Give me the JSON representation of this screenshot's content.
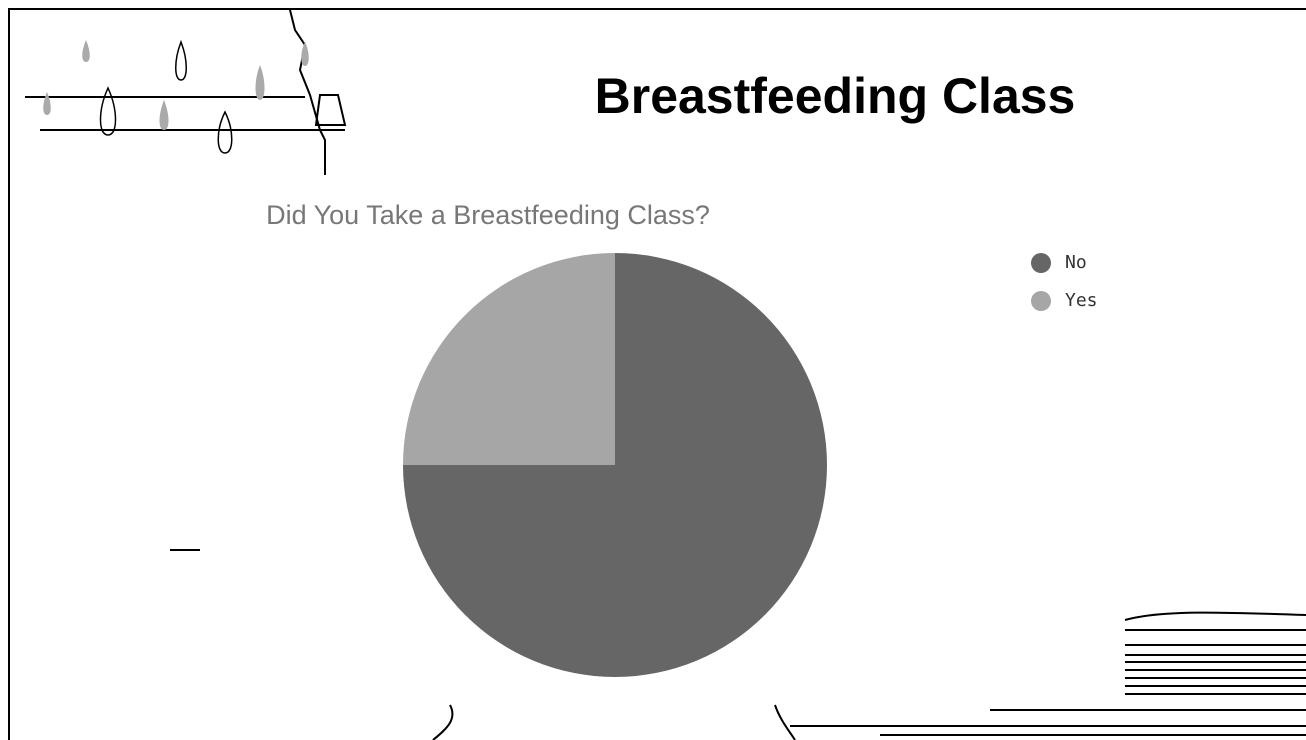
{
  "slide_title": "Breastfeeding Class",
  "chart_data": {
    "type": "pie",
    "title": "Did You Take a Breastfeeding Class?",
    "categories": [
      "No",
      "Yes"
    ],
    "values": [
      75,
      25
    ],
    "colors": [
      "#666666",
      "#a6a6a6"
    ],
    "legend": "right"
  }
}
